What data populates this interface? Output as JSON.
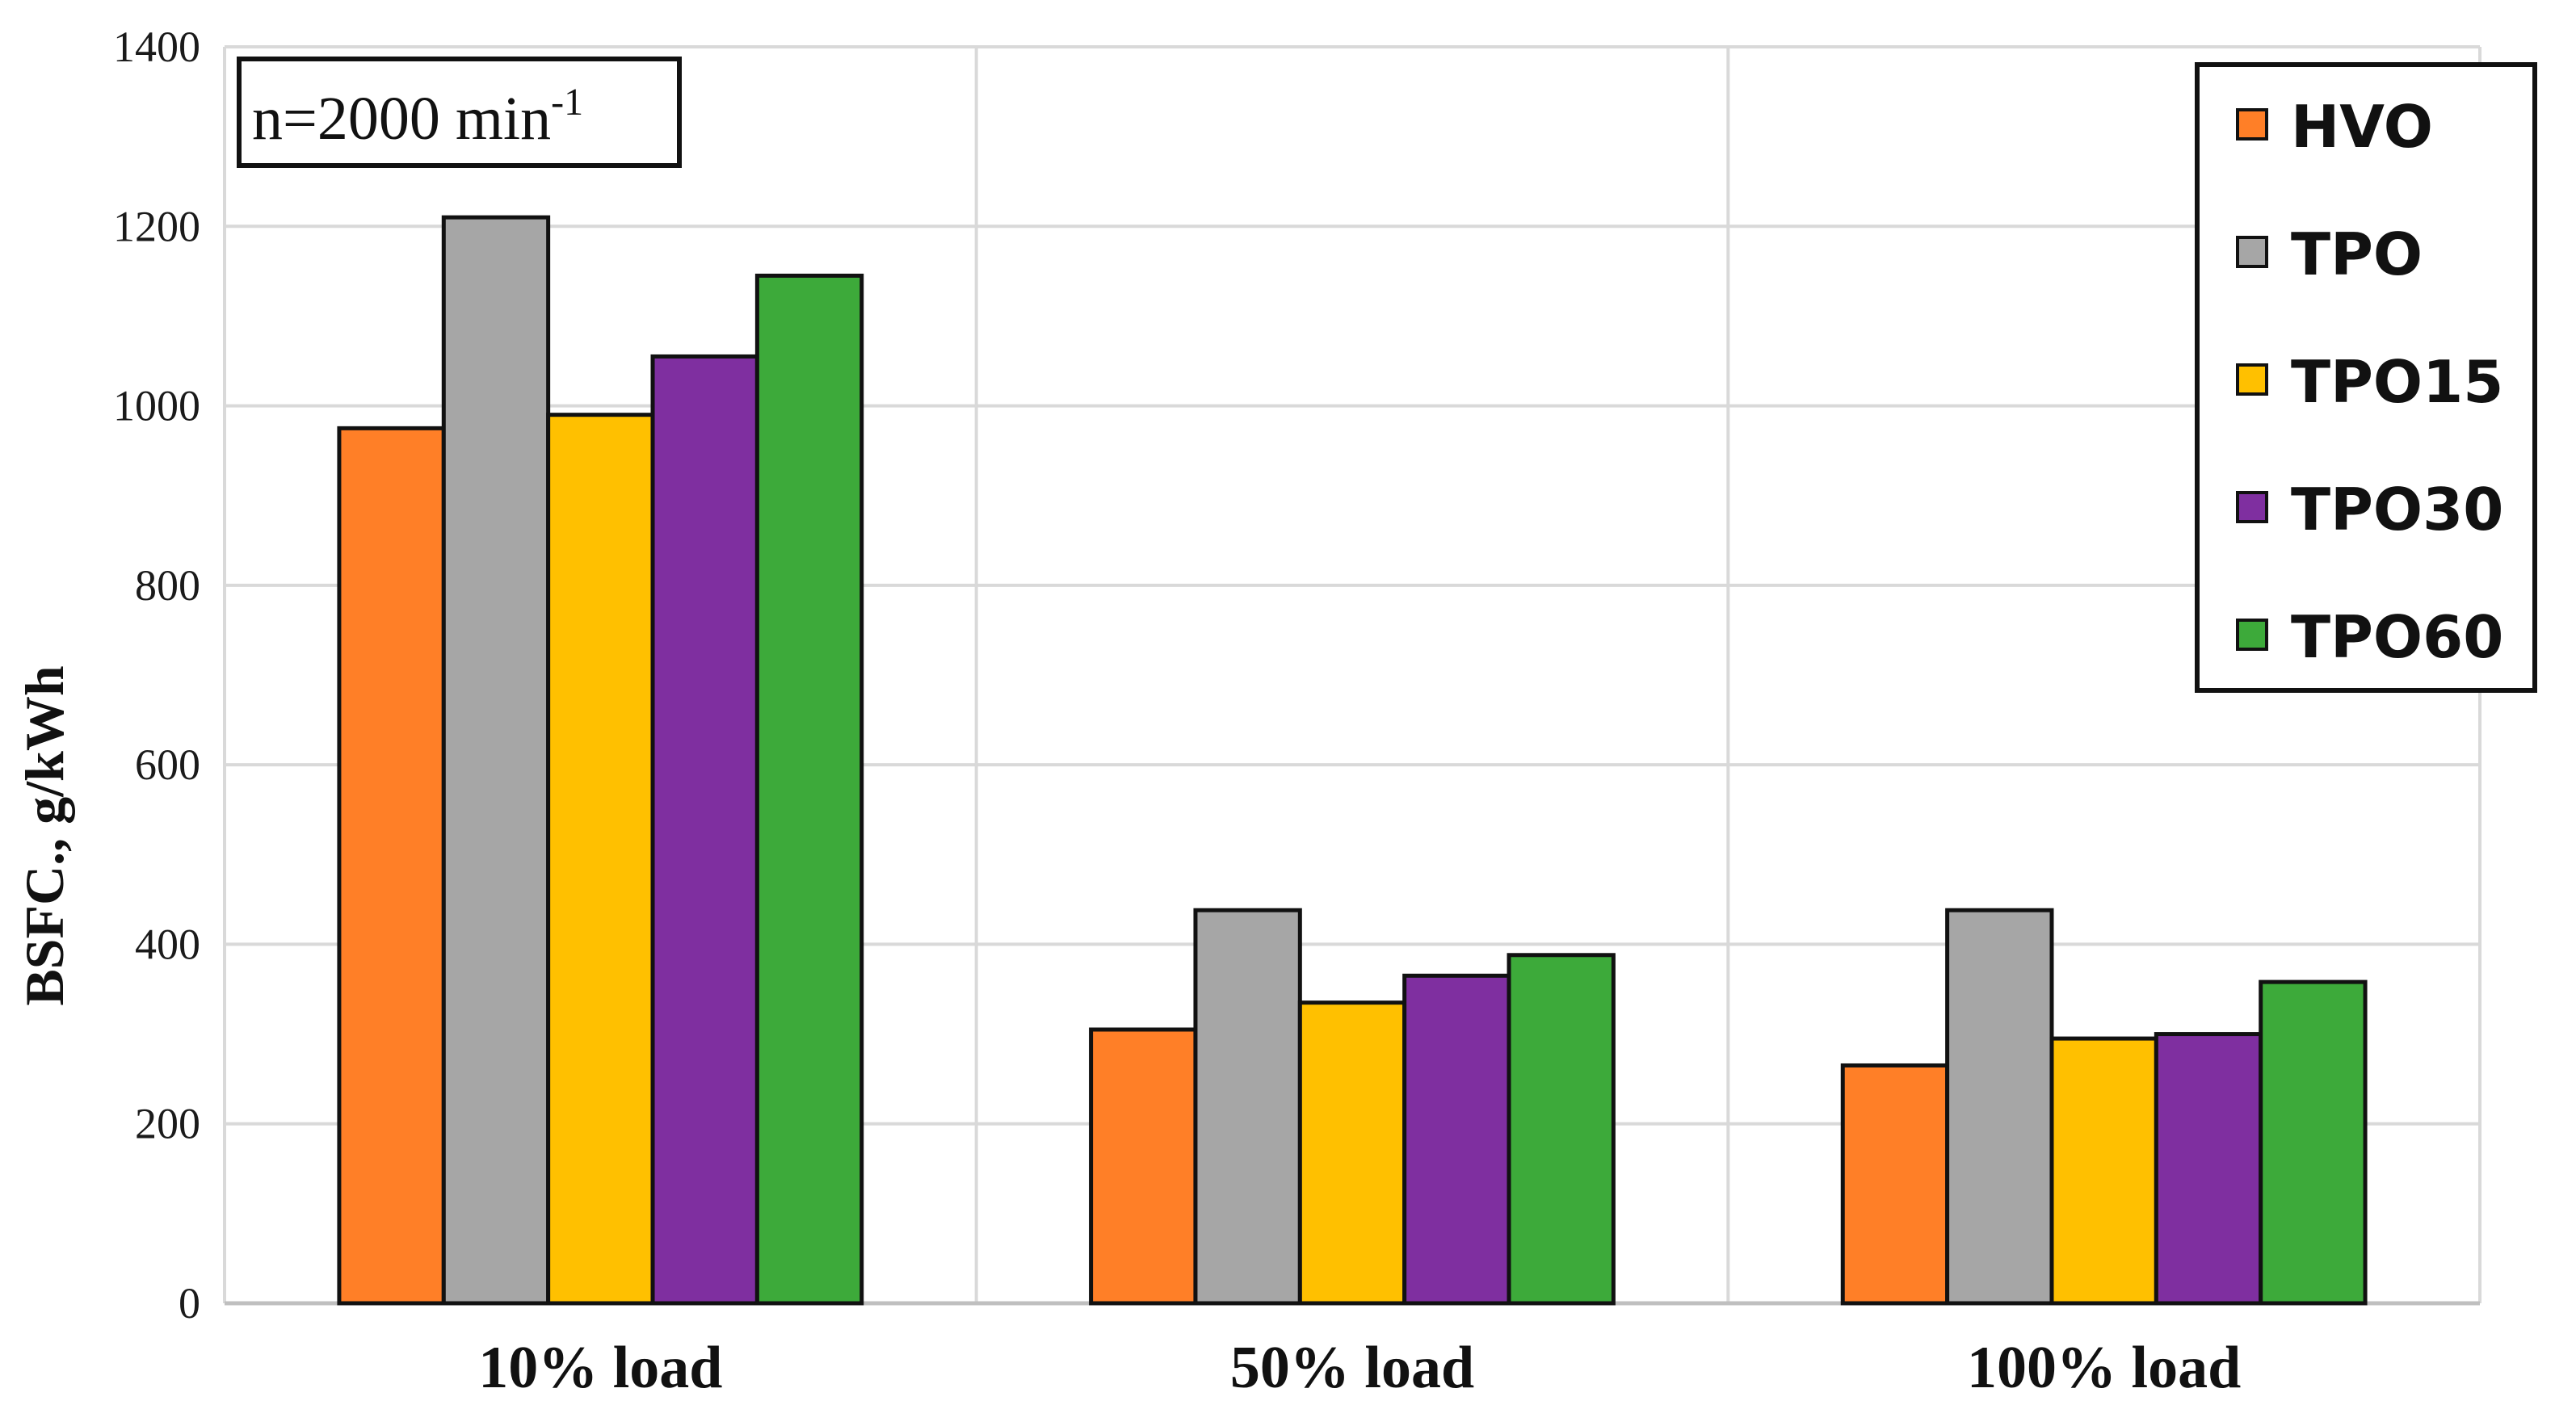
{
  "chart_data": {
    "type": "bar",
    "categories": [
      "10% load",
      "50% load",
      "100% load"
    ],
    "series": [
      {
        "name": "HVO",
        "color": "#FF7F27",
        "values": [
          975,
          305,
          265
        ]
      },
      {
        "name": "TPO",
        "color": "#A6A6A6",
        "values": [
          1210,
          438,
          438
        ]
      },
      {
        "name": "TPO15",
        "color": "#FFC000",
        "values": [
          990,
          335,
          295
        ]
      },
      {
        "name": "TPO30",
        "color": "#7F2FA0",
        "values": [
          1055,
          365,
          300
        ]
      },
      {
        "name": "TPO60",
        "color": "#3DAA3A",
        "values": [
          1145,
          388,
          358
        ]
      }
    ],
    "title": "",
    "xlabel": "",
    "ylabel": "BSFC., g/kWh",
    "ylim": [
      0,
      1400
    ],
    "yticks": [
      0,
      200,
      400,
      600,
      800,
      1000,
      1200,
      1400
    ],
    "annotation": "n=2000 min",
    "annotation_sup": "-1",
    "grid": true,
    "legend_position": "top-right"
  }
}
